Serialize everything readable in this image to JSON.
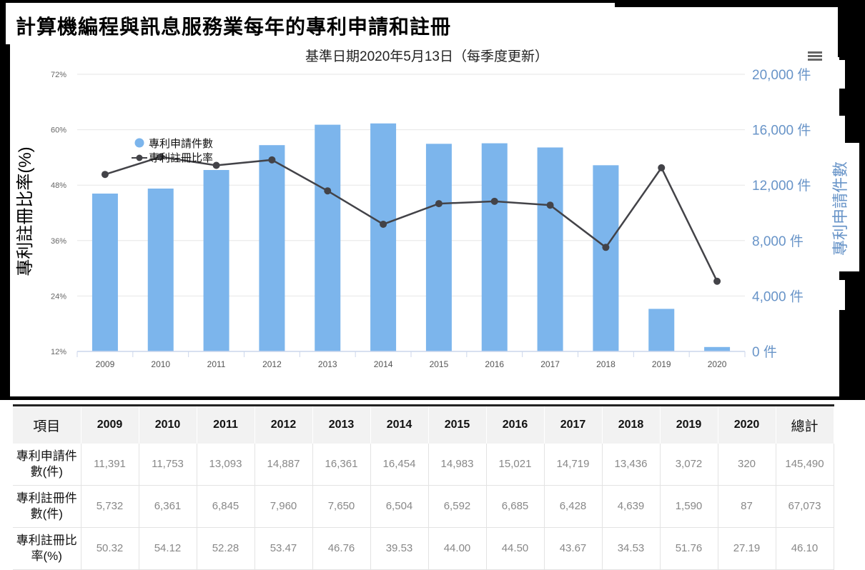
{
  "title": "計算機編程與訊息服務業每年的專利申請和註冊",
  "chart_data": {
    "type": "bar",
    "subtitle": "基準日期2020年5月13日（每季度更新）",
    "categories": [
      "2009",
      "2010",
      "2011",
      "2012",
      "2013",
      "2014",
      "2015",
      "2016",
      "2017",
      "2018",
      "2019",
      "2020"
    ],
    "series": [
      {
        "name": "專利申請件數",
        "type": "bar",
        "axis": "right",
        "color": "#7cb5ec",
        "values": [
          11391,
          11753,
          13093,
          14887,
          16361,
          16454,
          14983,
          15021,
          14719,
          13436,
          3072,
          320
        ]
      },
      {
        "name": "專利註冊比率",
        "type": "line",
        "axis": "left",
        "color": "#434348",
        "values": [
          50.32,
          54.12,
          52.28,
          53.47,
          46.76,
          39.53,
          44.0,
          44.5,
          43.67,
          34.53,
          51.76,
          27.19
        ]
      }
    ],
    "left_axis": {
      "label": "專利註冊比率(%)",
      "ylim": [
        12,
        72
      ],
      "ticks": [
        "72%",
        "60%",
        "48%",
        "36%",
        "24%",
        "12%"
      ]
    },
    "right_axis": {
      "label": "專利申請件數",
      "ylim": [
        0,
        20000
      ],
      "ticks": [
        "20,000 件",
        "16,000 件",
        "12,000 件",
        "8,000 件",
        "4,000 件",
        "0 件"
      ]
    },
    "grid": true,
    "legend_position": "top-left"
  },
  "menu_icon": "hamburger-menu-icon",
  "table": {
    "headers": [
      "項目",
      "2009",
      "2010",
      "2011",
      "2012",
      "2013",
      "2014",
      "2015",
      "2016",
      "2017",
      "2018",
      "2019",
      "2020",
      "總計"
    ],
    "rows": [
      {
        "label": "專利申請件數(件)",
        "cells": [
          "11,391",
          "11,753",
          "13,093",
          "14,887",
          "16,361",
          "16,454",
          "14,983",
          "15,021",
          "14,719",
          "13,436",
          "3,072",
          "320",
          "145,490"
        ]
      },
      {
        "label": "專利註冊件數(件)",
        "cells": [
          "5,732",
          "6,361",
          "6,845",
          "7,960",
          "7,650",
          "6,504",
          "6,592",
          "6,685",
          "6,428",
          "4,639",
          "1,590",
          "87",
          "67,073"
        ]
      },
      {
        "label": "專利註冊比率(%)",
        "cells": [
          "50.32",
          "54.12",
          "52.28",
          "53.47",
          "46.76",
          "39.53",
          "44.00",
          "44.50",
          "43.67",
          "34.53",
          "51.76",
          "27.19",
          "46.10"
        ]
      }
    ]
  }
}
